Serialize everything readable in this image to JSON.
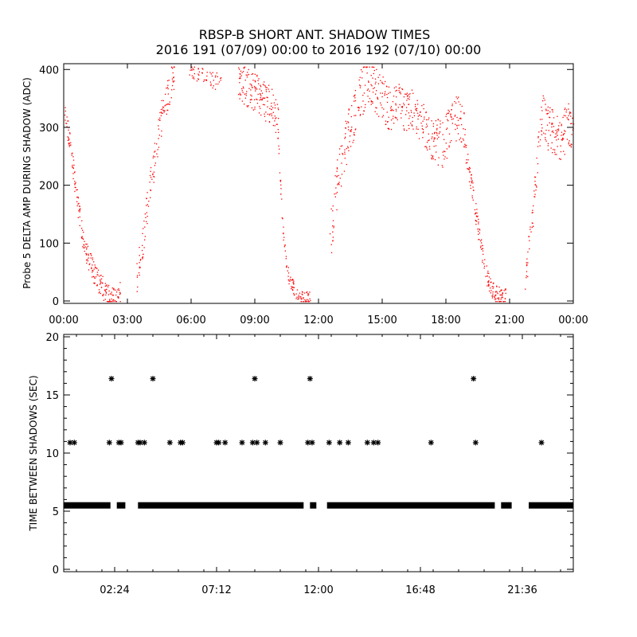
{
  "title_line1": "RBSP-B SHORT ANT. SHADOW TIMES",
  "title_line2": "2016 191 (07/09) 00:00 to 2016 192 (07/10) 00:00",
  "colors": {
    "upper_points": "#ff0000",
    "lower_points": "#000000",
    "axes": "#000000"
  },
  "chart_data": [
    {
      "type": "scatter",
      "ylabel": "Probe 5 DELTA AMP DURING SHADOW (ADC)",
      "xlim": [
        "00:00",
        "24:00"
      ],
      "ylim": [
        0,
        410
      ],
      "x_tick_labels": [
        "00:00",
        "03:00",
        "06:00",
        "09:00",
        "12:00",
        "15:00",
        "18:00",
        "21:00",
        "00:00"
      ],
      "y_tick_labels": [
        "0",
        "100",
        "200",
        "300",
        "400"
      ],
      "marker": "dot",
      "series": [
        {
          "hours": [
            0.0,
            0.3,
            0.6,
            0.8,
            1.0,
            1.2,
            1.4,
            1.6,
            1.8,
            2.0,
            2.15,
            2.5,
            2.65
          ],
          "values": [
            330,
            270,
            180,
            130,
            85,
            70,
            50,
            35,
            25,
            15,
            5,
            5,
            15
          ],
          "spread": 20,
          "density": 14
        },
        {
          "hours": [
            3.4,
            3.6,
            3.8,
            4.0,
            4.3,
            4.6,
            4.9,
            5.2
          ],
          "values": [
            40,
            80,
            130,
            190,
            250,
            320,
            360,
            400
          ],
          "spread": 30,
          "density": 12
        },
        {
          "hours": [
            5.9,
            6.3,
            6.7,
            7.1,
            7.4
          ],
          "values": [
            400,
            390,
            395,
            380,
            390
          ],
          "spread": 15,
          "density": 6
        },
        {
          "hours": [
            8.2,
            8.6,
            9.0,
            9.4,
            9.8,
            10.1
          ],
          "values": [
            385,
            370,
            360,
            350,
            335,
            310
          ],
          "spread": 35,
          "density": 14
        },
        {
          "hours": [
            10.1,
            10.2,
            10.3,
            10.4,
            10.5,
            10.6,
            10.8,
            11.0,
            11.1,
            11.5,
            11.6
          ],
          "values": [
            270,
            200,
            130,
            90,
            60,
            40,
            25,
            12,
            5,
            5,
            5
          ],
          "spread": 12,
          "density": 12
        },
        {
          "hours": [
            12.5,
            12.7,
            12.9,
            13.1,
            13.3,
            13.6,
            13.9,
            14.2
          ],
          "values": [
            100,
            160,
            220,
            250,
            280,
            320,
            350,
            380
          ],
          "spread": 45,
          "density": 12
        },
        {
          "hours": [
            14.2,
            14.6,
            15.0,
            15.4,
            15.8,
            16.2,
            16.6,
            17.0,
            17.4,
            17.8,
            18.2,
            18.6,
            18.9
          ],
          "values": [
            390,
            370,
            350,
            330,
            340,
            330,
            320,
            300,
            280,
            270,
            300,
            320,
            300
          ],
          "spread": 40,
          "density": 12
        },
        {
          "hours": [
            18.9,
            19.2,
            19.4,
            19.6,
            19.8,
            20.0,
            20.2,
            20.4,
            20.6,
            20.8
          ],
          "values": [
            260,
            200,
            150,
            100,
            60,
            35,
            20,
            10,
            5,
            5
          ],
          "spread": 18,
          "density": 14
        },
        {
          "hours": [
            21.7,
            21.9,
            22.1,
            22.3,
            22.5
          ],
          "values": [
            40,
            90,
            160,
            250,
            320
          ],
          "spread": 30,
          "density": 12
        },
        {
          "hours": [
            22.5,
            22.8,
            23.1,
            23.4,
            23.7,
            24.0
          ],
          "values": [
            320,
            300,
            290,
            285,
            300,
            310
          ],
          "spread": 40,
          "density": 14
        }
      ]
    },
    {
      "type": "scatter",
      "ylabel": "TIME BETWEEN SHADOWS (SEC)",
      "xlim": [
        "00:00",
        "24:00"
      ],
      "ylim": [
        0,
        20
      ],
      "x_tick_labels": [
        "02:24",
        "07:12",
        "12:00",
        "16:48",
        "21:36"
      ],
      "y_tick_labels": [
        "0",
        "5",
        "10",
        "15",
        "20"
      ],
      "marker": "asterisk",
      "baseline_value": 5.5,
      "baseline_spans_hours": [
        [
          0.0,
          2.2
        ],
        [
          2.5,
          2.9
        ],
        [
          3.5,
          11.3
        ],
        [
          11.6,
          11.9
        ],
        [
          12.4,
          20.3
        ],
        [
          20.6,
          21.1
        ],
        [
          21.9,
          24.0
        ]
      ],
      "points_hours": [
        0.3,
        0.5,
        2.15,
        2.25,
        2.6,
        2.7,
        3.5,
        3.6,
        3.8,
        4.2,
        5.0,
        5.5,
        5.6,
        7.2,
        7.3,
        7.6,
        8.4,
        8.9,
        9.0,
        9.1,
        9.5,
        10.2,
        11.5,
        11.6,
        11.7,
        12.5,
        13.0,
        13.4,
        14.3,
        14.6,
        14.8,
        17.3,
        19.3,
        19.4,
        22.5
      ],
      "points_values": [
        10.9,
        10.9,
        10.9,
        16.4,
        10.9,
        10.9,
        10.9,
        10.9,
        10.9,
        16.4,
        10.9,
        10.9,
        10.9,
        10.9,
        10.9,
        10.9,
        10.9,
        10.9,
        16.4,
        10.9,
        10.9,
        10.9,
        10.9,
        16.4,
        10.9,
        10.9,
        10.9,
        10.9,
        10.9,
        10.9,
        10.9,
        10.9,
        16.4,
        10.9,
        10.9
      ]
    }
  ]
}
